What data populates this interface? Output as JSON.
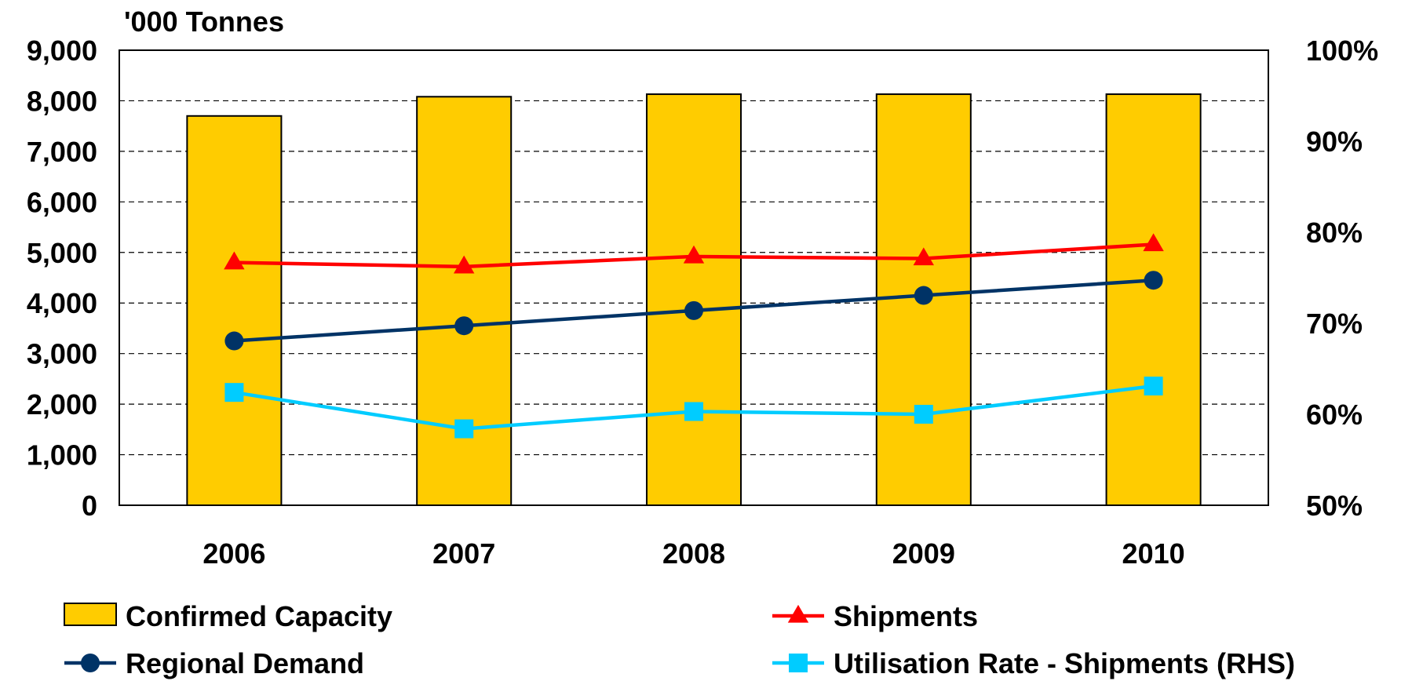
{
  "chart_data": {
    "type": "bar",
    "unit_label": "'000 Tonnes",
    "categories": [
      "2006",
      "2007",
      "2008",
      "2009",
      "2010"
    ],
    "y_left": {
      "min": 0,
      "max": 9000,
      "step": 1000,
      "ticks": [
        "0",
        "1,000",
        "2,000",
        "3,000",
        "4,000",
        "5,000",
        "6,000",
        "7,000",
        "8,000",
        "9,000"
      ]
    },
    "y_right": {
      "min": 50,
      "max": 100,
      "step": 10,
      "ticks": [
        "50%",
        "60%",
        "70%",
        "80%",
        "90%",
        "100%"
      ]
    },
    "grid": "dashed horizontal",
    "series": [
      {
        "name": "Confirmed Capacity",
        "kind": "bar",
        "axis": "left",
        "color": "#FFCC00",
        "values": [
          7700,
          8080,
          8130,
          8130,
          8130
        ]
      },
      {
        "name": "Shipments",
        "kind": "line",
        "marker": "triangle",
        "axis": "left",
        "color": "#FF0000",
        "values": [
          4800,
          4720,
          4920,
          4880,
          5160
        ]
      },
      {
        "name": "Regional Demand",
        "kind": "line",
        "marker": "circle",
        "axis": "left",
        "color": "#003366",
        "values": [
          3250,
          3550,
          3850,
          4150,
          4450
        ]
      },
      {
        "name": "Utilisation Rate - Shipments (RHS)",
        "kind": "line",
        "marker": "square",
        "axis": "right",
        "color": "#00CCFF",
        "values": [
          62.4,
          58.4,
          60.3,
          60.0,
          63.1
        ]
      }
    ],
    "legend": [
      {
        "series": 0,
        "label": "Confirmed Capacity"
      },
      {
        "series": 1,
        "label": "Shipments"
      },
      {
        "series": 2,
        "label": "Regional Demand"
      },
      {
        "series": 3,
        "label": "Utilisation Rate - Shipments (RHS)"
      }
    ]
  }
}
